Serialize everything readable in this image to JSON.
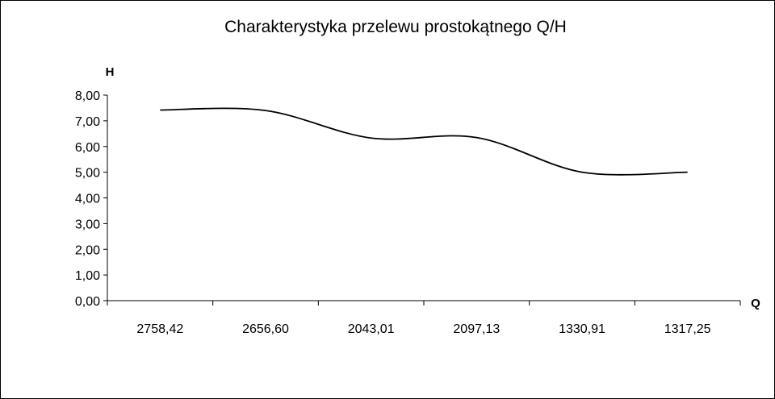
{
  "chart_data": {
    "type": "line",
    "title": "Charakterystyka przelewu prostokątnego Q/H",
    "xlabel": "Q",
    "ylabel": "H",
    "categories": [
      "2758,42",
      "2656,60",
      "2043,01",
      "2097,13",
      "1330,91",
      "1317,25"
    ],
    "series": [
      {
        "values": [
          7.42,
          7.4,
          6.33,
          6.35,
          5.0,
          5.0
        ]
      }
    ],
    "ylim": [
      0,
      8
    ],
    "y_ticks": [
      "0,00",
      "1,00",
      "2,00",
      "3,00",
      "4,00",
      "5,00",
      "6,00",
      "7,00",
      "8,00"
    ],
    "grid": false,
    "legend": "none",
    "line_color": "#000000"
  }
}
